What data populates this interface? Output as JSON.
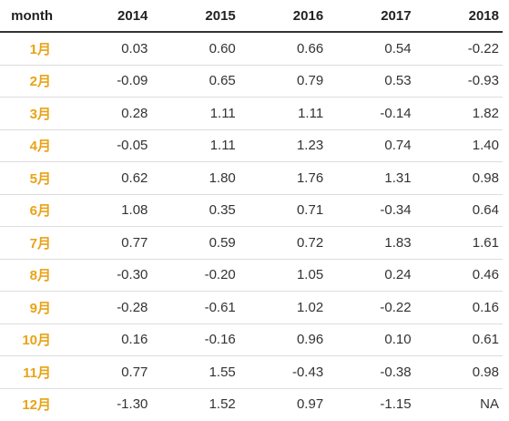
{
  "table": {
    "columns": [
      "month",
      "2014",
      "2015",
      "2016",
      "2017",
      "2018"
    ],
    "rows": [
      {
        "month": "1月",
        "values": [
          "0.03",
          "0.60",
          "0.66",
          "0.54",
          "-0.22"
        ]
      },
      {
        "month": "2月",
        "values": [
          "-0.09",
          "0.65",
          "0.79",
          "0.53",
          "-0.93"
        ]
      },
      {
        "month": "3月",
        "values": [
          "0.28",
          "1.11",
          "1.11",
          "-0.14",
          "1.82"
        ]
      },
      {
        "month": "4月",
        "values": [
          "-0.05",
          "1.11",
          "1.23",
          "0.74",
          "1.40"
        ]
      },
      {
        "month": "5月",
        "values": [
          "0.62",
          "1.80",
          "1.76",
          "1.31",
          "0.98"
        ]
      },
      {
        "month": "6月",
        "values": [
          "1.08",
          "0.35",
          "0.71",
          "-0.34",
          "0.64"
        ]
      },
      {
        "month": "7月",
        "values": [
          "0.77",
          "0.59",
          "0.72",
          "1.83",
          "1.61"
        ]
      },
      {
        "month": "8月",
        "values": [
          "-0.30",
          "-0.20",
          "1.05",
          "0.24",
          "0.46"
        ]
      },
      {
        "month": "9月",
        "values": [
          "-0.28",
          "-0.61",
          "1.02",
          "-0.22",
          "0.16"
        ]
      },
      {
        "month": "10月",
        "values": [
          "0.16",
          "-0.16",
          "0.96",
          "0.10",
          "0.61"
        ]
      },
      {
        "month": "11月",
        "values": [
          "0.77",
          "1.55",
          "-0.43",
          "-0.38",
          "0.98"
        ]
      },
      {
        "month": "12月",
        "values": [
          "-1.30",
          "1.52",
          "0.97",
          "-1.15",
          "NA"
        ]
      }
    ]
  },
  "colors": {
    "month_label": "#e8a317",
    "header_text": "#222222",
    "cell_text": "#333333",
    "row_divider": "#dddddd",
    "header_divider": "#333333"
  }
}
